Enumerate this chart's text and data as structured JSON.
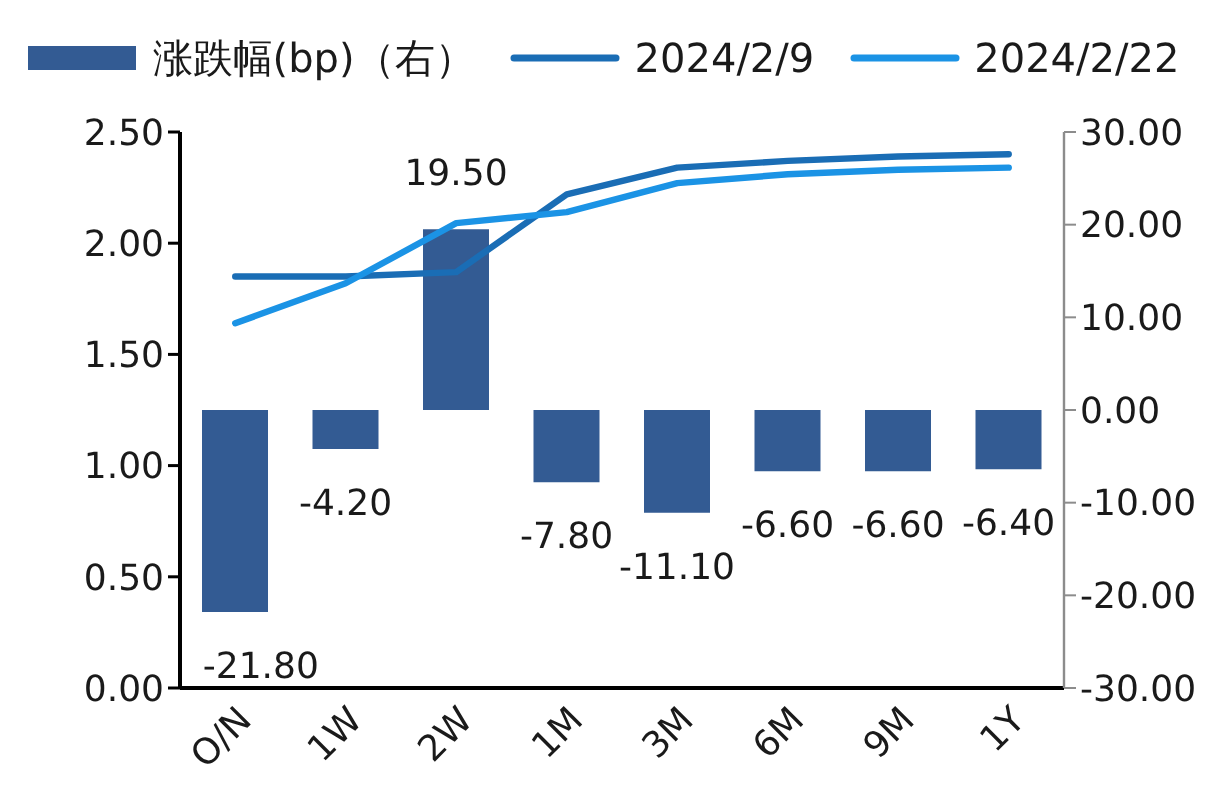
{
  "chart_data": {
    "type": "line",
    "categories": [
      "O/N",
      "1W",
      "2W",
      "1M",
      "3M",
      "6M",
      "9M",
      "1Y"
    ],
    "series": [
      {
        "name": "涨跌幅(bp)（右）",
        "type": "bar",
        "axis": "y2",
        "color": "#335b93",
        "values": [
          -21.8,
          -4.2,
          19.5,
          -7.8,
          -11.1,
          -6.6,
          -6.6,
          -6.4
        ],
        "value_labels": [
          "-21.80",
          "-4.20",
          "19.50",
          "-7.80",
          "-11.10",
          "-6.60",
          "-6.60",
          "-6.40"
        ]
      },
      {
        "name": "2024/2/9",
        "color": "#1a6db5",
        "values": [
          1.85,
          1.85,
          1.87,
          2.22,
          2.34,
          2.37,
          2.39,
          2.4
        ]
      },
      {
        "name": "2024/2/22",
        "color": "#1b93e5",
        "values": [
          1.64,
          1.82,
          2.09,
          2.14,
          2.27,
          2.31,
          2.33,
          2.34
        ]
      }
    ],
    "ylim": [
      0,
      2.5
    ],
    "yticks": [
      {
        "value": 0,
        "label": "0.00"
      },
      {
        "value": 0.5,
        "label": "0.50"
      },
      {
        "value": 1,
        "label": "1.00"
      },
      {
        "value": 1.5,
        "label": "1.50"
      },
      {
        "value": 2,
        "label": "2.00"
      },
      {
        "value": 2.5,
        "label": "2.50"
      }
    ],
    "y2lim": [
      -30,
      30
    ],
    "y2ticks": [
      {
        "value": -30,
        "label": "-30.00"
      },
      {
        "value": -20,
        "label": "-20.00"
      },
      {
        "value": -10,
        "label": "-10.00"
      },
      {
        "value": 0,
        "label": "0.00"
      },
      {
        "value": 10,
        "label": "10.00"
      },
      {
        "value": 20,
        "label": "20.00"
      },
      {
        "value": 30,
        "label": "30.00"
      }
    ],
    "grid": false,
    "legend": "top",
    "marker": "none"
  }
}
